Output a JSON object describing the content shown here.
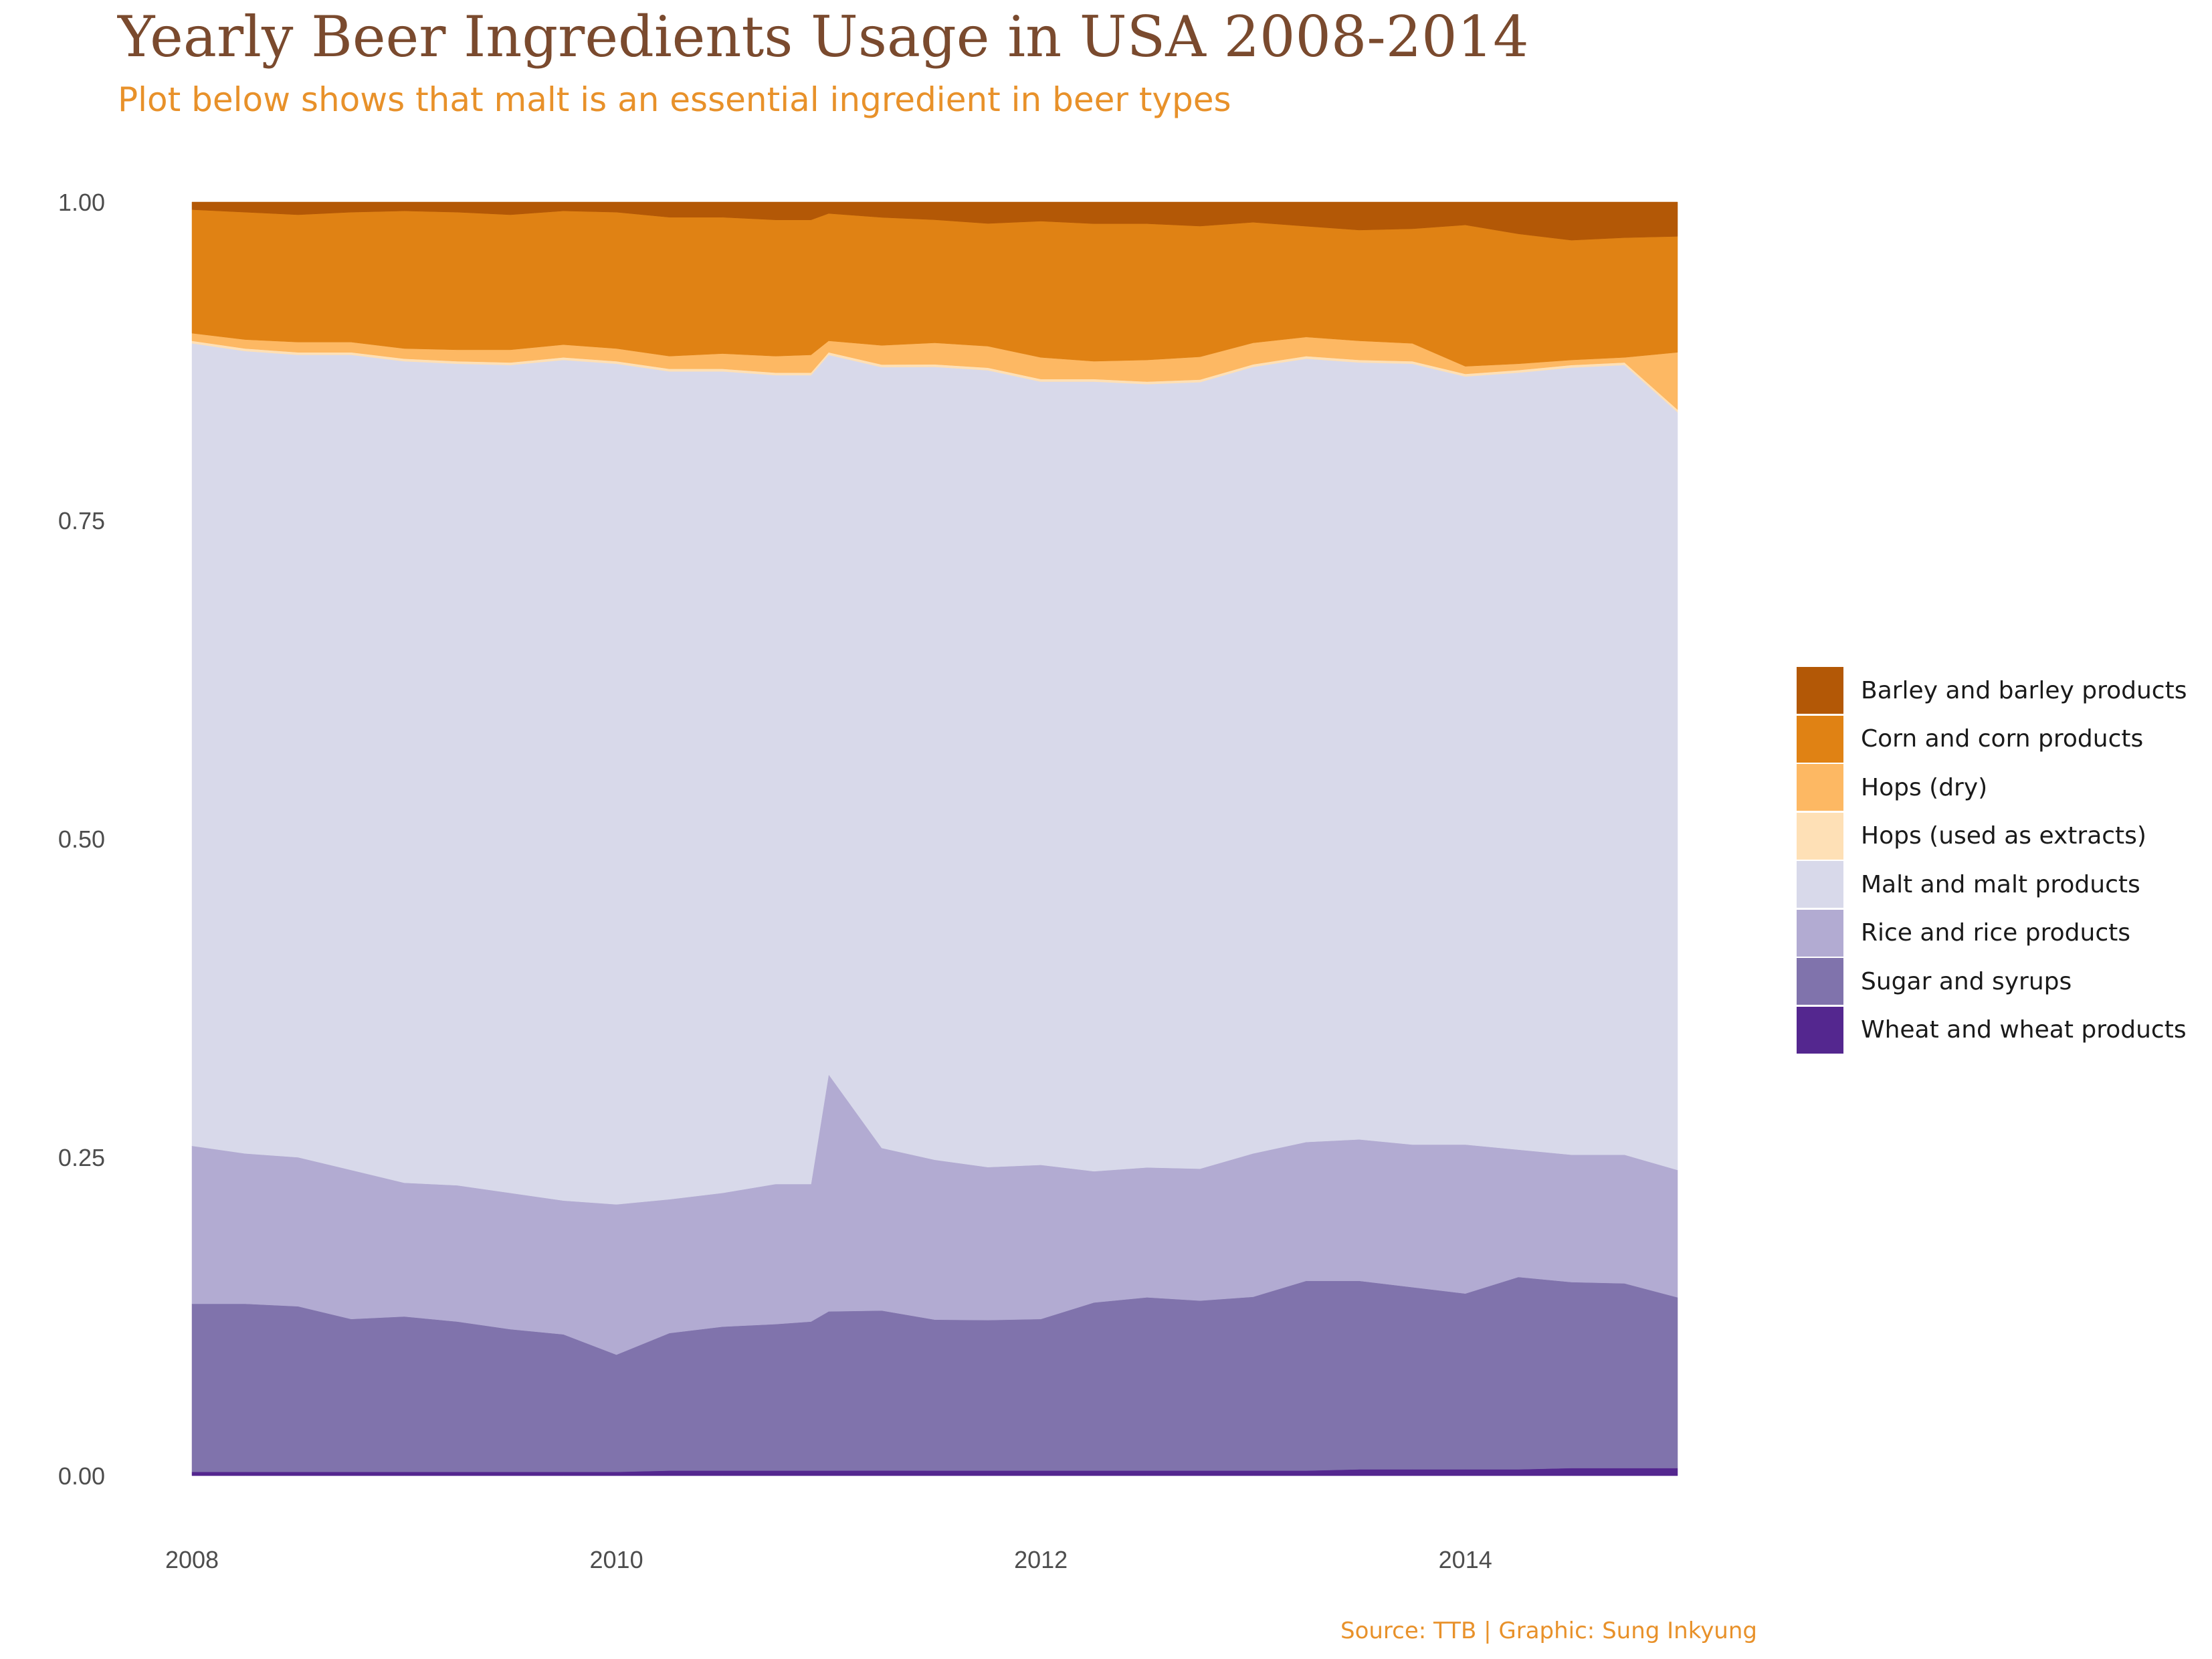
{
  "title": "Yearly Beer Ingredients Usage in USA 2008-2014",
  "subtitle": "Plot below shows that malt is an essential ingredient in beer types",
  "caption": "Source: TTB | Graphic: Sung Inkyung",
  "chart_data": {
    "type": "area",
    "stacked": "fill",
    "title": "Yearly Beer Ingredients Usage in USA 2008-2014",
    "xlabel": "",
    "ylabel": "",
    "xlim": [
      2008,
      2015
    ],
    "ylim": [
      0,
      1
    ],
    "x_ticks": [
      "2008",
      "2010",
      "2012",
      "2014"
    ],
    "x_tick_values": [
      2008,
      2010,
      2012,
      2014
    ],
    "y_ticks": [
      "0.00",
      "0.25",
      "0.50",
      "0.75",
      "1.00"
    ],
    "y_tick_values": [
      0,
      0.25,
      0.5,
      0.75,
      1.0
    ],
    "grid": false,
    "legend_position": "right",
    "x": [
      2008.0,
      2008.25,
      2008.5,
      2008.75,
      2009.0,
      2009.25,
      2009.5,
      2009.75,
      2010.0,
      2010.25,
      2010.5,
      2010.75,
      2010.917,
      2011.0,
      2011.25,
      2011.5,
      2011.75,
      2012.0,
      2012.25,
      2012.5,
      2012.75,
      2013.0,
      2013.25,
      2013.5,
      2013.75,
      2014.0,
      2014.25,
      2014.5,
      2014.75,
      2015.0
    ],
    "series": [
      {
        "name": "Wheat and wheat products",
        "color": "#54278f",
        "values": [
          0.003,
          0.003,
          0.003,
          0.003,
          0.003,
          0.003,
          0.003,
          0.003,
          0.003,
          0.004,
          0.004,
          0.004,
          0.004,
          0.004,
          0.004,
          0.004,
          0.004,
          0.004,
          0.004,
          0.004,
          0.004,
          0.004,
          0.004,
          0.005,
          0.005,
          0.005,
          0.005,
          0.006,
          0.006,
          0.006
        ]
      },
      {
        "name": "Sugar and syrups",
        "color": "#8073ac",
        "values": [
          0.132,
          0.132,
          0.13,
          0.12,
          0.122,
          0.118,
          0.112,
          0.108,
          0.092,
          0.108,
          0.113,
          0.115,
          0.117,
          0.125,
          0.125,
          0.119,
          0.119,
          0.119,
          0.132,
          0.136,
          0.134,
          0.137,
          0.149,
          0.148,
          0.143,
          0.138,
          0.151,
          0.146,
          0.145,
          0.134
        ]
      },
      {
        "name": "Rice and rice products",
        "color": "#b2abd2",
        "values": [
          0.124,
          0.118,
          0.117,
          0.117,
          0.105,
          0.107,
          0.107,
          0.105,
          0.118,
          0.105,
          0.105,
          0.11,
          0.108,
          0.186,
          0.127,
          0.126,
          0.121,
          0.121,
          0.103,
          0.102,
          0.104,
          0.113,
          0.109,
          0.111,
          0.112,
          0.117,
          0.1,
          0.1,
          0.101,
          0.1
        ]
      },
      {
        "name": "Malt and malt products",
        "color": "#d8d9ea",
        "values": [
          0.63,
          0.63,
          0.63,
          0.64,
          0.645,
          0.645,
          0.65,
          0.66,
          0.66,
          0.65,
          0.645,
          0.635,
          0.635,
          0.565,
          0.61,
          0.625,
          0.63,
          0.615,
          0.62,
          0.615,
          0.62,
          0.62,
          0.615,
          0.61,
          0.613,
          0.603,
          0.61,
          0.618,
          0.62,
          0.595
        ]
      },
      {
        "name": "Hops (used as extracts)",
        "color": "#fee0b6",
        "values": [
          0.002,
          0.002,
          0.002,
          0.002,
          0.002,
          0.002,
          0.002,
          0.002,
          0.002,
          0.002,
          0.002,
          0.002,
          0.002,
          0.002,
          0.002,
          0.002,
          0.002,
          0.002,
          0.002,
          0.002,
          0.002,
          0.002,
          0.002,
          0.002,
          0.002,
          0.002,
          0.002,
          0.002,
          0.002,
          0.002
        ]
      },
      {
        "name": "Hops (dry)",
        "color": "#fdb863",
        "values": [
          0.006,
          0.007,
          0.008,
          0.008,
          0.008,
          0.009,
          0.01,
          0.01,
          0.01,
          0.01,
          0.012,
          0.013,
          0.014,
          0.009,
          0.015,
          0.017,
          0.017,
          0.017,
          0.014,
          0.017,
          0.018,
          0.017,
          0.015,
          0.015,
          0.014,
          0.006,
          0.005,
          0.004,
          0.004,
          0.045
        ]
      },
      {
        "name": "Corn and corn products",
        "color": "#e08214",
        "values": [
          0.097,
          0.1,
          0.1,
          0.102,
          0.108,
          0.108,
          0.106,
          0.105,
          0.107,
          0.109,
          0.107,
          0.107,
          0.106,
          0.1,
          0.1,
          0.097,
          0.097,
          0.107,
          0.108,
          0.107,
          0.103,
          0.095,
          0.087,
          0.087,
          0.09,
          0.111,
          0.102,
          0.094,
          0.094,
          0.091
        ]
      },
      {
        "name": "Barley and barley products",
        "color": "#b35806",
        "values": [
          0.006,
          0.008,
          0.01,
          0.008,
          0.007,
          0.008,
          0.01,
          0.007,
          0.008,
          0.012,
          0.012,
          0.014,
          0.014,
          0.009,
          0.012,
          0.014,
          0.017,
          0.015,
          0.017,
          0.017,
          0.019,
          0.016,
          0.019,
          0.022,
          0.021,
          0.018,
          0.025,
          0.03,
          0.028,
          0.027
        ]
      }
    ]
  }
}
